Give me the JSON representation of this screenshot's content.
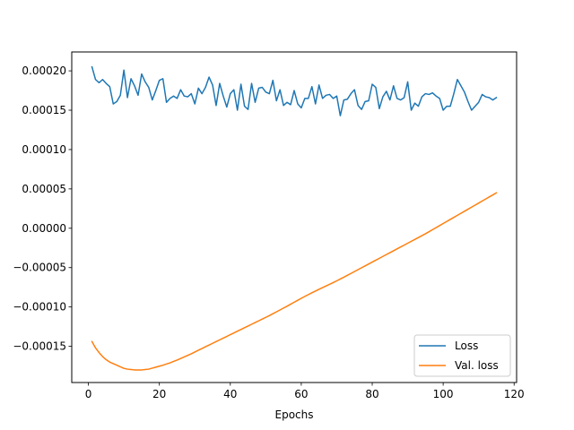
{
  "chart_data": {
    "type": "line",
    "title": "",
    "xlabel": "Epochs",
    "ylabel": "",
    "xlim": [
      -4.7,
      120.7
    ],
    "ylim": [
      -0.000196,
      0.000224
    ],
    "xticks": [
      0,
      20,
      40,
      60,
      80,
      100,
      120
    ],
    "yticks": [
      -0.00015,
      -0.0001,
      -5e-05,
      0.0,
      5e-05,
      0.0001,
      0.00015,
      0.0002
    ],
    "ytick_labels": [
      "−0.00015",
      "−0.00010",
      "−0.00005",
      "0.00000",
      "0.00005",
      "0.00010",
      "0.00015",
      "0.00020"
    ],
    "xtick_labels": [
      "0",
      "20",
      "40",
      "60",
      "80",
      "100",
      "120"
    ],
    "grid": false,
    "legend_position": "lower-right",
    "x": [
      1,
      2,
      3,
      4,
      5,
      6,
      7,
      8,
      9,
      10,
      11,
      12,
      13,
      14,
      15,
      16,
      17,
      18,
      19,
      20,
      21,
      22,
      23,
      24,
      25,
      26,
      27,
      28,
      29,
      30,
      31,
      32,
      33,
      34,
      35,
      36,
      37,
      38,
      39,
      40,
      41,
      42,
      43,
      44,
      45,
      46,
      47,
      48,
      49,
      50,
      51,
      52,
      53,
      54,
      55,
      56,
      57,
      58,
      59,
      60,
      61,
      62,
      63,
      64,
      65,
      66,
      67,
      68,
      69,
      70,
      71,
      72,
      73,
      74,
      75,
      76,
      77,
      78,
      79,
      80,
      81,
      82,
      83,
      84,
      85,
      86,
      87,
      88,
      89,
      90,
      91,
      92,
      93,
      94,
      95,
      96,
      97,
      98,
      99,
      100,
      101,
      102,
      103,
      104,
      105,
      106,
      107,
      108,
      109,
      110,
      111,
      112,
      113,
      114,
      115
    ],
    "series": [
      {
        "name": "Loss",
        "color": "#1f77b4",
        "values": [
          0.000205,
          0.000189,
          0.000185,
          0.000189,
          0.000184,
          0.00018,
          0.000158,
          0.000161,
          0.000169,
          0.000201,
          0.000166,
          0.00019,
          0.000181,
          0.000169,
          0.000196,
          0.000186,
          0.000179,
          0.000163,
          0.000175,
          0.000188,
          0.00019,
          0.00016,
          0.000165,
          0.000168,
          0.000165,
          0.000176,
          0.000168,
          0.000167,
          0.000171,
          0.000158,
          0.000178,
          0.000171,
          0.000179,
          0.000192,
          0.000182,
          0.000156,
          0.000184,
          0.000168,
          0.000154,
          0.000171,
          0.000176,
          0.00015,
          0.000183,
          0.000155,
          0.000151,
          0.000184,
          0.00016,
          0.000178,
          0.000179,
          0.000173,
          0.000171,
          0.000188,
          0.000162,
          0.000176,
          0.000156,
          0.00016,
          0.000157,
          0.000175,
          0.000158,
          0.000153,
          0.000165,
          0.000165,
          0.00018,
          0.000158,
          0.000182,
          0.000165,
          0.000169,
          0.00017,
          0.000165,
          0.000168,
          0.000143,
          0.000163,
          0.000164,
          0.000171,
          0.000176,
          0.000156,
          0.000151,
          0.000161,
          0.000162,
          0.000183,
          0.000179,
          0.000152,
          0.000167,
          0.000174,
          0.000163,
          0.000181,
          0.000165,
          0.000163,
          0.000166,
          0.000186,
          0.00015,
          0.000159,
          0.000155,
          0.000167,
          0.000171,
          0.00017,
          0.000172,
          0.000168,
          0.000165,
          0.00015,
          0.000155,
          0.000155,
          0.000171,
          0.000189,
          0.000181,
          0.000173,
          0.000161,
          0.00015,
          0.000155,
          0.00016,
          0.00017,
          0.000167,
          0.000166,
          0.000163,
          0.000166
        ]
      },
      {
        "name": "Val. loss",
        "color": "#ff7f0e",
        "values": [
          -0.000144,
          -0.000152,
          -0.000158,
          -0.000163,
          -0.000167,
          -0.00017,
          -0.000172,
          -0.000174,
          -0.000176,
          -0.000178,
          -0.000179,
          -0.0001795,
          -0.00018,
          -0.00018,
          -0.00018,
          -0.0001795,
          -0.000179,
          -0.0001777,
          -0.0001765,
          -0.0001752,
          -0.000174,
          -0.0001725,
          -0.000171,
          -0.0001692,
          -0.0001675,
          -0.0001655,
          -0.0001635,
          -0.0001615,
          -0.0001595,
          -0.0001572,
          -0.000155,
          -0.0001528,
          -0.0001506,
          -0.0001484,
          -0.0001462,
          -0.000144,
          -0.0001418,
          -0.0001396,
          -0.0001374,
          -0.0001352,
          -0.000133,
          -0.0001308,
          -0.0001286,
          -0.0001264,
          -0.0001242,
          -0.000122,
          -0.0001198,
          -0.0001176,
          -0.0001154,
          -0.0001132,
          -0.000111,
          -0.0001086,
          -0.0001062,
          -0.0001038,
          -0.0001014,
          -9.9e-05,
          -9.65e-05,
          -9.4e-05,
          -9.15e-05,
          -8.9e-05,
          -8.66e-05,
          -8.43e-05,
          -8.2e-05,
          -7.98e-05,
          -7.76e-05,
          -7.54e-05,
          -7.33e-05,
          -7.12e-05,
          -6.9e-05,
          -6.68e-05,
          -6.45e-05,
          -6.22e-05,
          -5.98e-05,
          -5.74e-05,
          -5.5e-05,
          -5.26e-05,
          -5.02e-05,
          -4.78e-05,
          -4.54e-05,
          -4.3e-05,
          -4.06e-05,
          -3.82e-05,
          -3.58e-05,
          -3.34e-05,
          -3.1e-05,
          -2.86e-05,
          -2.62e-05,
          -2.38e-05,
          -2.14e-05,
          -1.9e-05,
          -1.66e-05,
          -1.42e-05,
          -1.18e-05,
          -9.4e-06,
          -7e-06,
          -4.4e-06,
          -1.8e-06,
          8e-07,
          3.4e-06,
          6e-06,
          8.6e-06,
          1.12e-05,
          1.38e-05,
          1.64e-05,
          1.9e-05,
          2.16e-05,
          2.42e-05,
          2.68e-05,
          2.94e-05,
          3.2e-05,
          3.46e-05,
          3.72e-05,
          3.98e-05,
          4.24e-05,
          4.5e-05
        ]
      }
    ]
  }
}
